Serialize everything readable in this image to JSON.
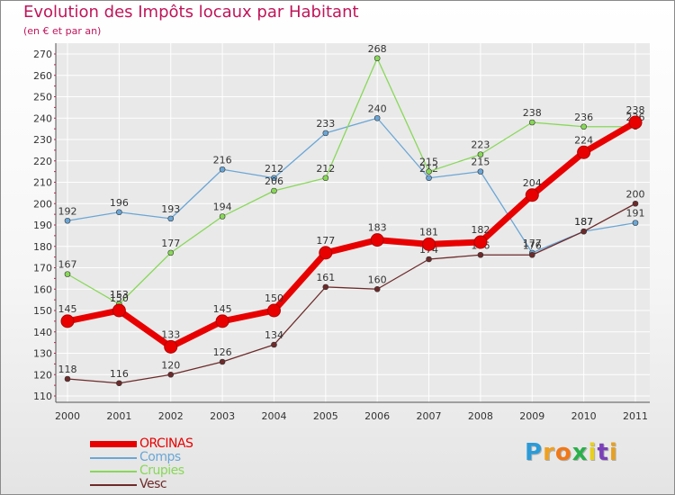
{
  "header": {
    "title": "Evolution des Impôts locaux par Habitant",
    "subtitle": "(en € et par an)"
  },
  "logo": {
    "letters": [
      "P",
      "r",
      "o",
      "x",
      "i",
      "t",
      "i"
    ],
    "colors": [
      "#2a9bd8",
      "#f0a020",
      "#f07818",
      "#2ab04a",
      "#e8d020",
      "#7a3fb8",
      "#e8a020"
    ]
  },
  "colors": {
    "title": "#c0155a",
    "axis": "#555555",
    "grid": "#ffffff",
    "tick_mark": "#d0154a"
  },
  "chart_data": {
    "type": "line",
    "title": "Evolution des Impôts locaux par Habitant",
    "subtitle": "(en € et par an)",
    "xlabel": "",
    "ylabel": "",
    "categories": [
      "2000",
      "2001",
      "2002",
      "2003",
      "2004",
      "2005",
      "2006",
      "2007",
      "2008",
      "2009",
      "2010",
      "2011"
    ],
    "ylim": [
      110,
      270
    ],
    "yticks": [
      110,
      120,
      130,
      140,
      150,
      160,
      170,
      180,
      190,
      200,
      210,
      220,
      230,
      240,
      250,
      260,
      270
    ],
    "grid": true,
    "legend_position": "bottom-left",
    "series": [
      {
        "name": "ORCINAS",
        "color": "#e80000",
        "values": [
          145,
          150,
          133,
          145,
          150,
          177,
          183,
          181,
          182,
          204,
          224,
          238
        ],
        "bold": true
      },
      {
        "name": "Comps",
        "color": "#6aa6d6",
        "values": [
          192,
          196,
          193,
          216,
          212,
          233,
          240,
          212,
          215,
          177,
          187,
          191
        ],
        "bold": false
      },
      {
        "name": "Crupies",
        "color": "#88d858",
        "values": [
          167,
          153,
          177,
          194,
          206,
          212,
          268,
          215,
          223,
          238,
          236,
          236
        ],
        "bold": false
      },
      {
        "name": "Vesc",
        "color": "#6e2a2a",
        "values": [
          118,
          116,
          120,
          126,
          134,
          161,
          160,
          174,
          176,
          176,
          187,
          200
        ],
        "bold": false
      }
    ]
  }
}
